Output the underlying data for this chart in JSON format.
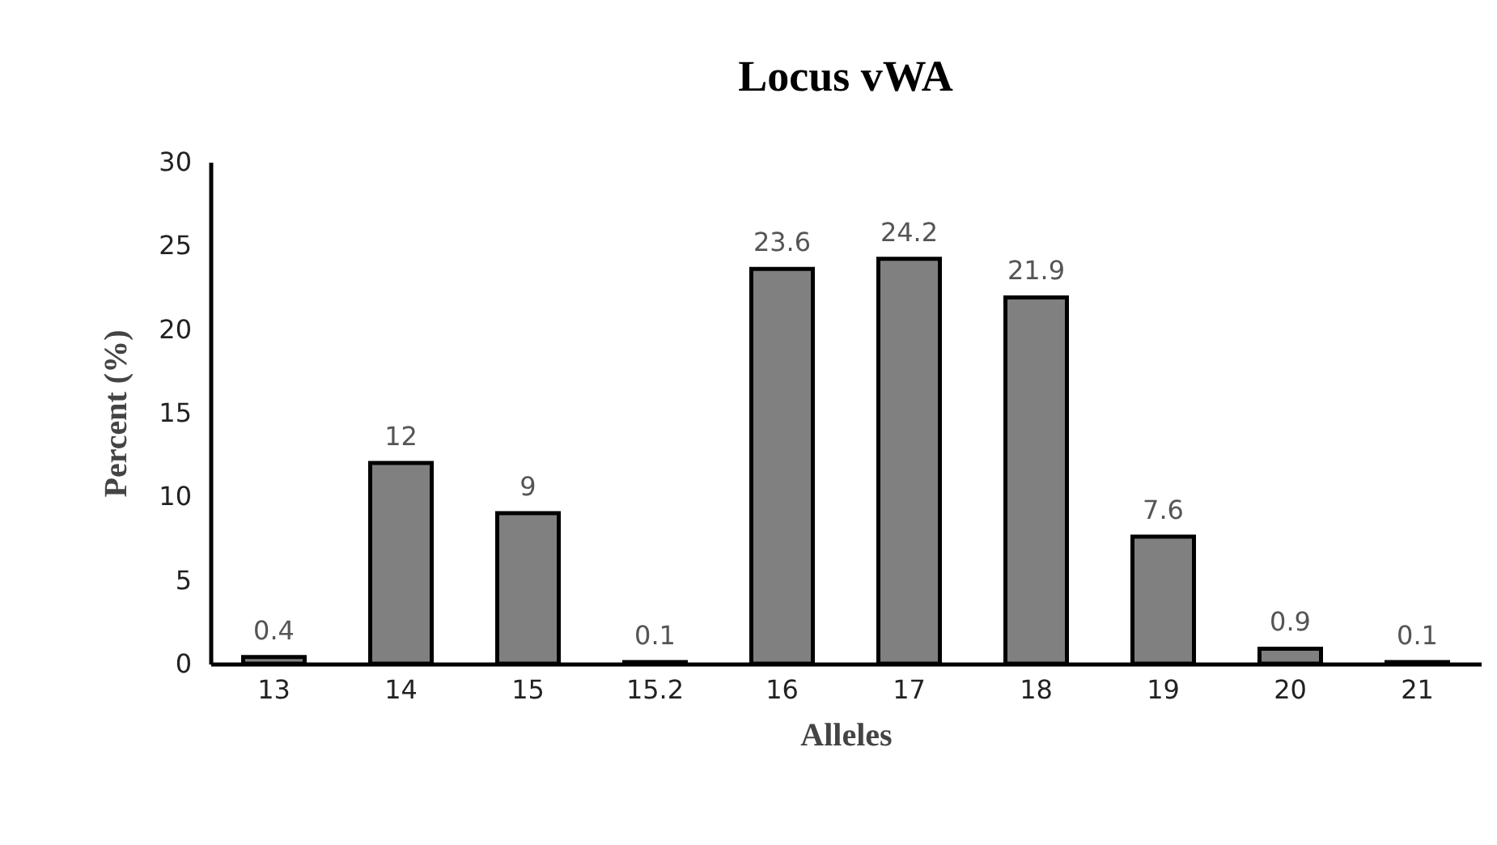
{
  "chart_data": {
    "type": "bar",
    "title": "Locus vWA",
    "xlabel": "Alleles",
    "ylabel": "Percent (%)",
    "categories": [
      "13",
      "14",
      "15",
      "15.2",
      "16",
      "17",
      "18",
      "19",
      "20",
      "21"
    ],
    "values": [
      0.4,
      12,
      9,
      0.1,
      23.6,
      24.2,
      21.9,
      7.6,
      0.9,
      0.1
    ],
    "color": "#808080",
    "ylim": [
      0,
      30
    ],
    "yticks": [
      0,
      5,
      10,
      15,
      20,
      25,
      30
    ],
    "grid": false,
    "data_labels": true
  }
}
